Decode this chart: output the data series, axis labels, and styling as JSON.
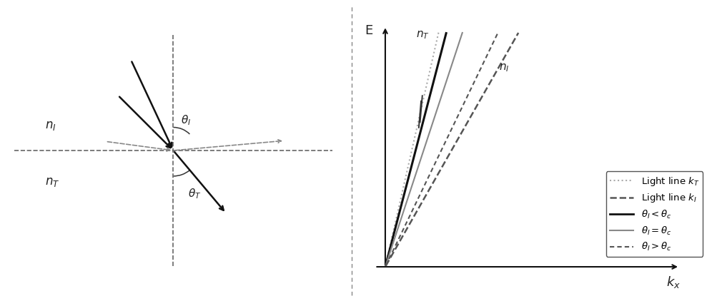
{
  "fig_width": 10.1,
  "fig_height": 4.22,
  "dpi": 100,
  "bg_color": "#ffffff",
  "left_panel": {
    "n_I_label": "n$_I$",
    "n_T_label": "n$_T$",
    "theta_I_label": "$\\theta_I$",
    "theta_T_label": "$\\theta_T$",
    "arrow_color_dark": "#111111",
    "arrow_color_gray": "#888888",
    "dashed_color": "#666666"
  },
  "right_panel": {
    "xlabel": "$k_x$",
    "ylabel": "E",
    "n_T_label": "n$_T$",
    "n_I_label": "n$_I$",
    "slope_kT": 5.5,
    "slope_kI": 2.2,
    "slope_theta_less": 4.8,
    "slope_theta_eq": 3.8,
    "slope_theta_gt": 2.6,
    "line_color_kT": "#aaaaaa",
    "line_color_kI": "#555555",
    "line_color_less": "#111111",
    "line_color_eq": "#888888",
    "line_color_gt": "#555555"
  },
  "divider_color": "#888888"
}
